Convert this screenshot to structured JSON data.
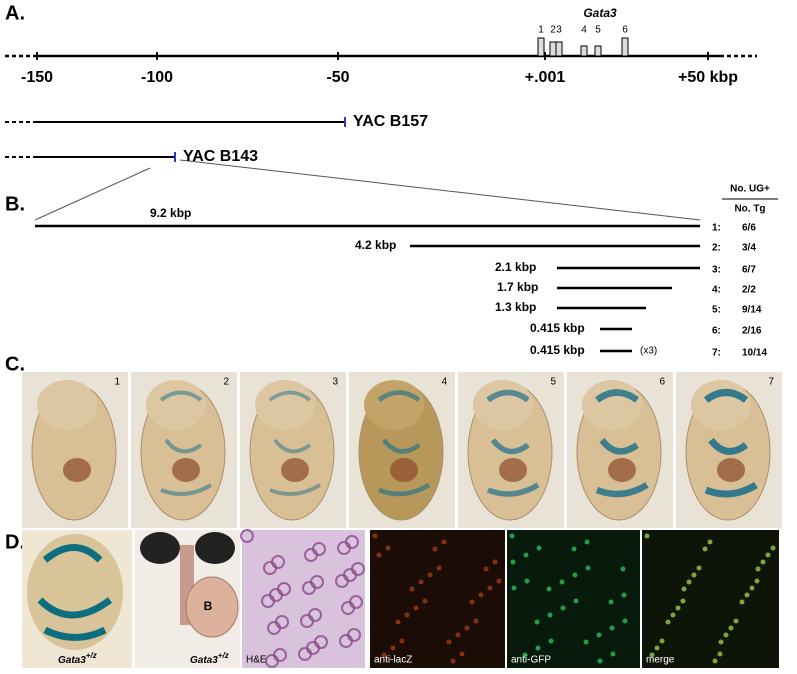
{
  "panel_a": {
    "label": "A.",
    "gene": "Gata3",
    "exons": [
      "1",
      "2",
      "3",
      "4",
      "5",
      "6"
    ],
    "axis_labels": [
      "-150",
      "-100",
      "-50",
      "+.001",
      "+50 kbp"
    ],
    "yacs": [
      "YAC B157",
      "YAC B143"
    ]
  },
  "panel_b": {
    "label": "B.",
    "table_header": {
      "numerator": "No. UG+",
      "denominator": "No. Tg"
    },
    "constructs": [
      {
        "size": "9.2 kbp",
        "row": "1:",
        "ratio": "6/6"
      },
      {
        "size": "4.2 kbp",
        "row": "2:",
        "ratio": "3/4"
      },
      {
        "size": "2.1 kbp",
        "row": "3:",
        "ratio": "6/7"
      },
      {
        "size": "1.7 kbp",
        "row": "4:",
        "ratio": "2/2"
      },
      {
        "size": "1.3 kbp",
        "row": "5:",
        "ratio": "9/14"
      },
      {
        "size": "0.415 kbp",
        "row": "6:",
        "ratio": "2/16"
      },
      {
        "size": "0.415 kbp",
        "note": "(x3)",
        "row": "7:",
        "ratio": "10/14"
      }
    ]
  },
  "panel_c": {
    "label": "C.",
    "embryos": [
      "1",
      "2",
      "3",
      "4",
      "5",
      "6",
      "7"
    ]
  },
  "panel_d": {
    "label": "D.",
    "genotype": "Gata3",
    "genotype_sup": "+/z",
    "bladder_label": "B",
    "stains": [
      "H&E",
      "anti-lacZ",
      "anti-GFP",
      "merge"
    ]
  }
}
